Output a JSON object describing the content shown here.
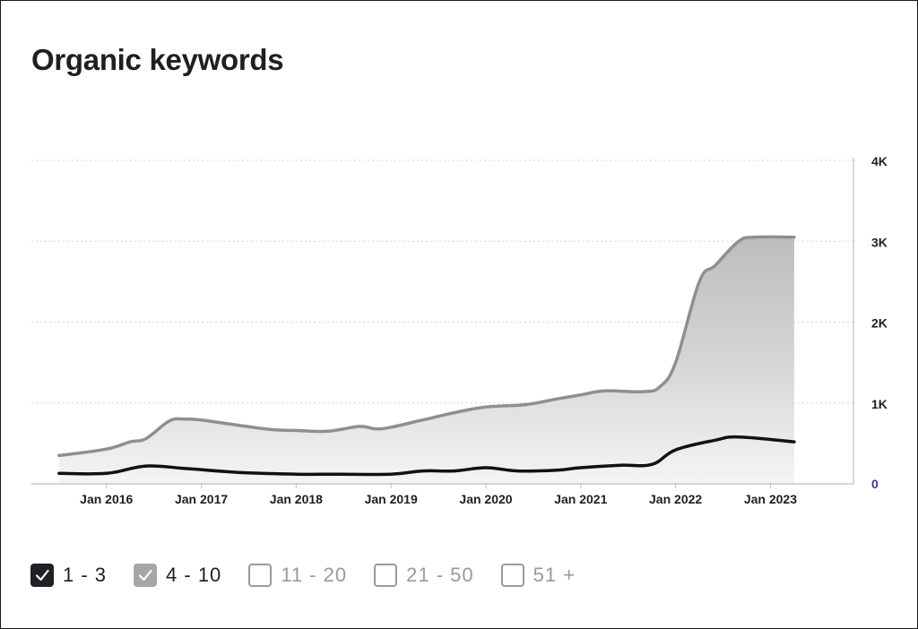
{
  "title": "Organic keywords",
  "chart_data": {
    "type": "area",
    "y_ticks": [
      "0",
      "1K",
      "2K",
      "3K",
      "4K"
    ],
    "y_tick_values": [
      0,
      1000,
      2000,
      3000,
      4000
    ],
    "ylim": [
      0,
      4000
    ],
    "x_ticks": [
      "Jan 2016",
      "Jan 2017",
      "Jan 2018",
      "Jan 2019",
      "Jan 2020",
      "Jan 2021",
      "Jan 2022",
      "Jan 2023"
    ],
    "x_tick_dates": [
      "2016-01",
      "2017-01",
      "2018-01",
      "2019-01",
      "2020-01",
      "2021-01",
      "2022-01",
      "2023-01"
    ],
    "grid": true,
    "y_axis_side": "right",
    "series": [
      {
        "name": "4 - 10",
        "color": "#8f8f8f",
        "x": [
          "2015-07",
          "2016-01",
          "2016-04",
          "2016-06",
          "2016-09",
          "2016-11",
          "2017-01",
          "2017-06",
          "2017-10",
          "2018-01",
          "2018-05",
          "2018-09",
          "2018-11",
          "2019-01",
          "2019-05",
          "2019-09",
          "2020-01",
          "2020-06",
          "2020-10",
          "2021-01",
          "2021-04",
          "2021-09",
          "2021-11",
          "2022-01",
          "2022-04",
          "2022-06",
          "2022-09",
          "2022-11",
          "2023-04"
        ],
        "values": [
          350,
          430,
          520,
          560,
          780,
          800,
          790,
          720,
          670,
          660,
          650,
          710,
          680,
          700,
          790,
          880,
          950,
          980,
          1050,
          1100,
          1150,
          1140,
          1200,
          1500,
          2500,
          2700,
          3000,
          3050,
          3050
        ]
      },
      {
        "name": "1 - 3",
        "color": "#111111",
        "x": [
          "2015-07",
          "2016-01",
          "2016-06",
          "2016-11",
          "2017-06",
          "2018-01",
          "2018-06",
          "2019-01",
          "2019-05",
          "2019-09",
          "2020-01",
          "2020-05",
          "2020-10",
          "2021-01",
          "2021-06",
          "2021-10",
          "2022-01",
          "2022-06",
          "2022-09",
          "2023-04"
        ],
        "values": [
          130,
          130,
          220,
          190,
          140,
          120,
          120,
          120,
          160,
          160,
          200,
          160,
          170,
          200,
          230,
          240,
          420,
          540,
          580,
          520
        ]
      }
    ],
    "legend": [
      {
        "label": "1 - 3",
        "state": "checked-dark"
      },
      {
        "label": "4 - 10",
        "state": "checked-gray"
      },
      {
        "label": "11 - 20",
        "state": "unchecked"
      },
      {
        "label": "21 - 50",
        "state": "unchecked"
      },
      {
        "label": "51 +",
        "state": "unchecked"
      }
    ],
    "legend_position": "bottom-left",
    "zero_label_color": "#4b2fb3"
  }
}
